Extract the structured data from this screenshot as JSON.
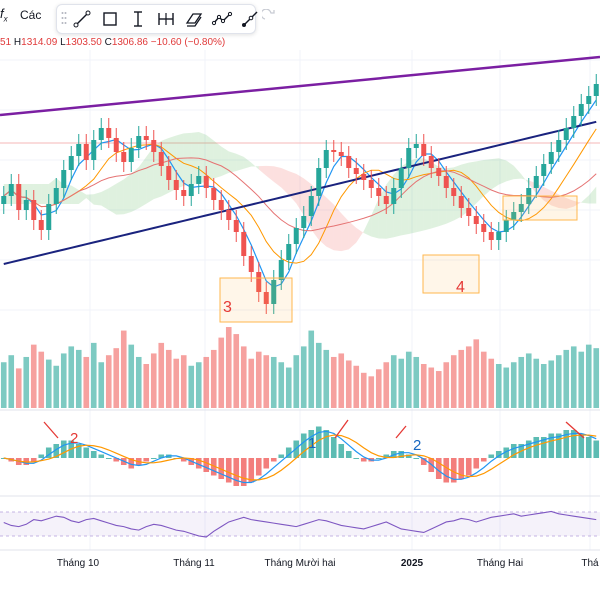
{
  "toolbar": {
    "fx_label": "f",
    "fx_sub": "x",
    "label": "Các",
    "tools": [
      "trend-line-icon",
      "rectangle-icon",
      "text-cursor-icon",
      "measure-icon",
      "brush-icon",
      "path-icon",
      "ray-icon"
    ],
    "undo_icon": "redo-icon"
  },
  "ohlc": {
    "open_tail": "51",
    "high_key": "H",
    "high": "1314.09",
    "low_key": "L",
    "low": "1303.50",
    "close_key": "C",
    "close": "1306.86",
    "change": "−10.60 (−0.80%)"
  },
  "chart_data": {
    "type": "candlestick",
    "x_axis_labels": [
      "Tháng 10",
      "Tháng 11",
      "Tháng Mười hai",
      "2025",
      "Tháng Hai",
      "Thá"
    ],
    "annotations": [
      "3",
      "4",
      "2",
      "1",
      "2"
    ],
    "indicators": [
      "Ichimoku cloud",
      "Moving averages",
      "Volume",
      "MACD",
      "RSI"
    ],
    "colors": {
      "up": "#26a69a",
      "down": "#ef5350",
      "trend": "#7b1fa2",
      "ma_long": "#1a237e",
      "rsi": "#7e57c2"
    },
    "price_series": [
      1262,
      1268,
      1255,
      1260,
      1250,
      1245,
      1258,
      1266,
      1275,
      1282,
      1288,
      1280,
      1290,
      1296,
      1291,
      1284,
      1279,
      1286,
      1292,
      1290,
      1284,
      1277,
      1270,
      1265,
      1262,
      1268,
      1272,
      1266,
      1260,
      1255,
      1250,
      1244,
      1232,
      1224,
      1214,
      1208,
      1220,
      1230,
      1238,
      1246,
      1252,
      1262,
      1276,
      1285,
      1284,
      1282,
      1276,
      1273,
      1270,
      1266,
      1262,
      1258,
      1266,
      1276,
      1286,
      1288,
      1282,
      1276,
      1272,
      1266,
      1262,
      1256,
      1252,
      1248,
      1244,
      1240,
      1244,
      1250,
      1254,
      1258,
      1266,
      1272,
      1278,
      1284,
      1290,
      1296,
      1302,
      1308,
      1312,
      1318
    ],
    "volume": [
      52,
      60,
      45,
      58,
      72,
      64,
      55,
      48,
      62,
      70,
      66,
      58,
      74,
      52,
      60,
      68,
      88,
      72,
      58,
      50,
      62,
      74,
      66,
      56,
      60,
      48,
      52,
      58,
      66,
      80,
      92,
      84,
      70,
      56,
      64,
      60,
      58,
      52,
      46,
      60,
      70,
      88,
      74,
      66,
      58,
      62,
      54,
      48,
      40,
      36,
      44,
      52,
      60,
      56,
      64,
      58,
      50,
      46,
      42,
      52,
      60,
      66,
      70,
      78,
      64,
      56,
      50,
      46,
      52,
      58,
      62,
      56,
      50,
      54,
      60,
      66,
      70,
      64,
      72,
      68
    ],
    "macd": [
      0,
      -1,
      -2,
      -2,
      -1,
      1,
      3,
      4,
      5,
      5,
      4,
      3,
      2,
      1,
      0,
      -1,
      -2,
      -3,
      -2,
      -1,
      0,
      1,
      1,
      0,
      -1,
      -2,
      -3,
      -4,
      -5,
      -6,
      -7,
      -8,
      -8,
      -7,
      -5,
      -3,
      -1,
      1,
      3,
      5,
      7,
      8,
      9,
      8,
      6,
      4,
      2,
      0,
      -1,
      -1,
      0,
      1,
      2,
      2,
      1,
      0,
      -2,
      -4,
      -6,
      -7,
      -7,
      -6,
      -5,
      -3,
      -1,
      1,
      2,
      3,
      4,
      4,
      5,
      6,
      6,
      7,
      7,
      8,
      8,
      7,
      6,
      5
    ],
    "rsi": [
      55,
      50,
      48,
      52,
      60,
      58,
      62,
      66,
      64,
      58,
      55,
      60,
      62,
      58,
      54,
      50,
      48,
      44,
      42,
      48,
      52,
      50,
      46,
      42,
      40,
      36,
      32,
      30,
      40,
      48,
      56,
      60,
      64,
      60,
      58,
      56,
      54,
      52,
      50,
      48,
      52,
      56,
      60,
      58,
      54,
      50,
      48,
      46,
      44,
      48,
      52,
      56,
      50,
      44,
      42,
      40,
      38,
      44,
      50,
      56,
      58,
      62,
      60,
      56,
      60,
      64,
      66,
      68,
      70,
      66,
      68,
      70,
      72,
      74,
      70,
      68,
      66,
      64,
      62,
      60
    ]
  }
}
